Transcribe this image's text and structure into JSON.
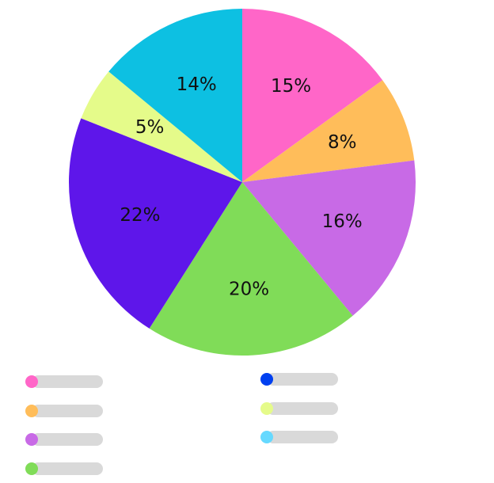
{
  "chart_data": {
    "type": "pie",
    "slices": [
      {
        "label": "15%",
        "value": 15,
        "color": "#ff66c8"
      },
      {
        "label": "8%",
        "value": 8,
        "color": "#ffbd5a"
      },
      {
        "label": "16%",
        "value": 16,
        "color": "#c86ae6"
      },
      {
        "label": "20%",
        "value": 20,
        "color": "#80dc58"
      },
      {
        "label": "22%",
        "value": 22,
        "color": "#5e16ea"
      },
      {
        "label": "5%",
        "value": 5,
        "color": "#e5fb8a"
      },
      {
        "label": "14%",
        "value": 14,
        "color": "#0dc0e2"
      }
    ],
    "legend": {
      "placement": "bottom",
      "swatches": [
        "#ff66c8",
        "#ffbd5a",
        "#c86ae6",
        "#80dc58",
        "#0040f0",
        "#e5fb8a",
        "#66d9ff"
      ]
    }
  }
}
